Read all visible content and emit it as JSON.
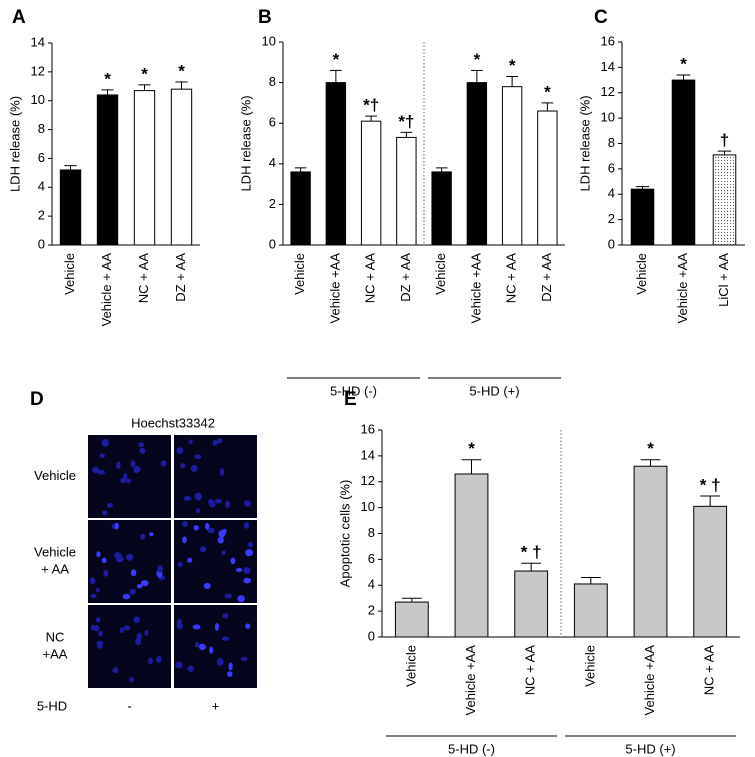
{
  "chart_data": [
    {
      "type": "bar",
      "panel": "A",
      "y_label": "LDH release (%)",
      "ylim": [
        0,
        14
      ],
      "yticks": [
        0,
        2,
        4,
        6,
        8,
        10,
        12,
        14
      ],
      "categories": [
        "Vehicle",
        "Vehicle + AA",
        "NC + AA",
        "DZ + AA"
      ],
      "values": [
        5.2,
        10.4,
        10.7,
        10.8
      ],
      "errors": [
        0.3,
        0.35,
        0.4,
        0.5
      ],
      "fills": [
        "#000000",
        "#000000",
        "#ffffff",
        "#ffffff"
      ],
      "annotations": [
        null,
        "*",
        "*",
        "*"
      ]
    },
    {
      "type": "bar",
      "panel": "B",
      "y_label": "LDH release (%)",
      "ylim": [
        0,
        10
      ],
      "yticks": [
        0,
        2,
        4,
        6,
        8,
        10
      ],
      "groups": [
        {
          "label": "5-HD (-)",
          "categories": [
            "Vehicle",
            "Vehicle +AA",
            "NC + AA",
            "DZ + AA"
          ],
          "values": [
            3.6,
            8.0,
            6.1,
            5.3
          ],
          "errors": [
            0.2,
            0.6,
            0.25,
            0.25
          ],
          "fills": [
            "#000000",
            "#000000",
            "#ffffff",
            "#ffffff"
          ],
          "annotations": [
            null,
            "*",
            "*†",
            "*†"
          ]
        },
        {
          "label": "5-HD (+)",
          "categories": [
            "Vehicle",
            "Vehicle +AA",
            "NC + AA",
            "DZ + AA"
          ],
          "values": [
            3.6,
            8.0,
            7.8,
            6.6
          ],
          "errors": [
            0.2,
            0.6,
            0.5,
            0.4
          ],
          "fills": [
            "#000000",
            "#000000",
            "#ffffff",
            "#ffffff"
          ],
          "annotations": [
            null,
            "*",
            "*",
            "*"
          ]
        }
      ]
    },
    {
      "type": "bar",
      "panel": "C",
      "y_label": "LDH release (%)",
      "ylim": [
        0,
        16
      ],
      "yticks": [
        0,
        2,
        4,
        6,
        8,
        10,
        12,
        14,
        16
      ],
      "categories": [
        "Vehicle",
        "Vehicle +AA",
        "LiCl + AA"
      ],
      "values": [
        4.4,
        13.0,
        7.1
      ],
      "errors": [
        0.2,
        0.4,
        0.3
      ],
      "fills": [
        "#000000",
        "#000000",
        "dots"
      ],
      "annotations": [
        null,
        "*",
        "†"
      ]
    },
    {
      "type": "bar",
      "panel": "E",
      "y_label": "Apoptotic cells (%)",
      "ylim": [
        0,
        16
      ],
      "yticks": [
        0,
        2,
        4,
        6,
        8,
        10,
        12,
        14,
        16
      ],
      "groups": [
        {
          "label": "5-HD (-)",
          "categories": [
            "Vehicle",
            "Vehicle +AA",
            "NC + AA"
          ],
          "values": [
            2.7,
            12.6,
            5.1
          ],
          "errors": [
            0.3,
            1.1,
            0.6
          ],
          "fills": [
            "#c8c8c8",
            "#c8c8c8",
            "#c8c8c8"
          ],
          "annotations": [
            null,
            "*",
            "* †"
          ]
        },
        {
          "label": "5-HD (+)",
          "categories": [
            "Vehicle",
            "Vehicle +AA",
            "NC + AA"
          ],
          "values": [
            4.1,
            13.2,
            10.1
          ],
          "errors": [
            0.5,
            0.5,
            0.8
          ],
          "fills": [
            "#c8c8c8",
            "#c8c8c8",
            "#c8c8c8"
          ],
          "annotations": [
            null,
            "*",
            "* †"
          ]
        }
      ]
    }
  ],
  "image_panel": {
    "panel": "D",
    "title": "Hoechst33342",
    "rows": [
      [
        "Vehicle"
      ],
      [
        "Vehicle",
        "+ AA"
      ],
      [
        "NC",
        "+AA"
      ]
    ],
    "footer": "5-HD",
    "columns": [
      "-",
      "+"
    ]
  }
}
